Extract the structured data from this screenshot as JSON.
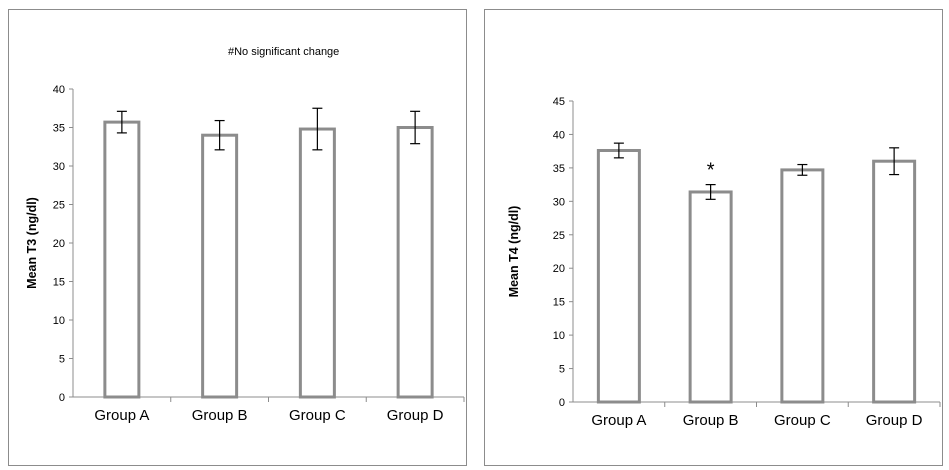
{
  "chart_data": [
    {
      "type": "bar",
      "categories": [
        "Group A",
        "Group B",
        "Group C",
        "Group D"
      ],
      "values": [
        35.7,
        34.0,
        34.8,
        35.0
      ],
      "errors": [
        1.4,
        1.9,
        2.7,
        2.1
      ],
      "ylabel": "Mean T3 (ng/dl)",
      "ylim": [
        0,
        40
      ],
      "yticks": [
        "0",
        "5",
        "10",
        "15",
        "20",
        "25",
        "30",
        "35",
        "40"
      ],
      "annotation": "#No significant change",
      "annotations": [
        "",
        "",
        "",
        ""
      ],
      "grid": false,
      "legend": "none",
      "bar_color": "#ffffff",
      "bar_edge_color": "#8c8c8c"
    },
    {
      "type": "bar",
      "categories": [
        "Group A",
        "Group B",
        "Group C",
        "Group D"
      ],
      "values": [
        37.6,
        31.4,
        34.7,
        36.0
      ],
      "errors": [
        1.1,
        1.1,
        0.8,
        2.0
      ],
      "ylabel": "Mean T4 (ng/dl)",
      "ylim": [
        0,
        45
      ],
      "yticks": [
        "0",
        "5",
        "10",
        "15",
        "20",
        "25",
        "30",
        "35",
        "40",
        "45"
      ],
      "annotation": "",
      "annotations": [
        "",
        "*",
        "",
        ""
      ],
      "grid": false,
      "legend": "none",
      "bar_color": "#ffffff",
      "bar_edge_color": "#8c8c8c"
    }
  ]
}
